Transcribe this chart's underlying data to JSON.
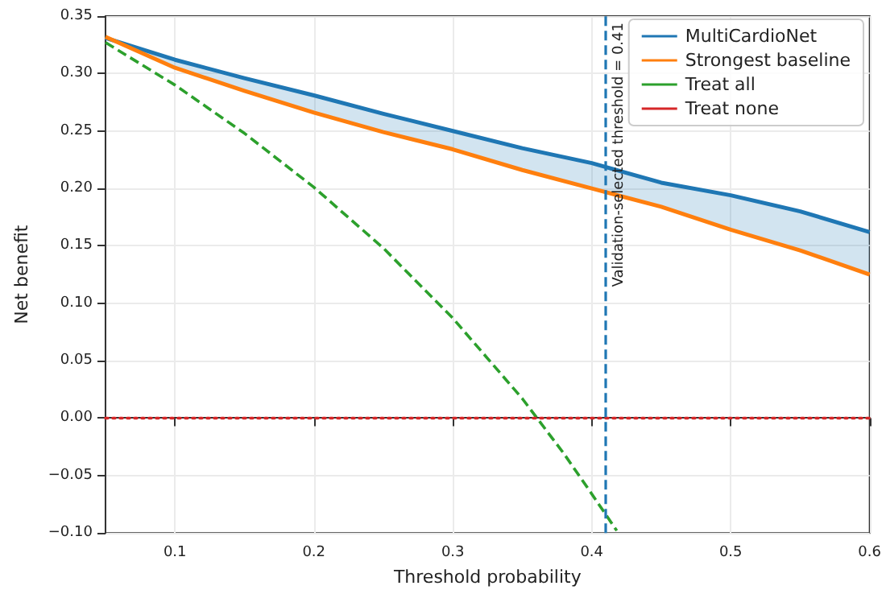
{
  "chart_data": {
    "type": "line",
    "xlabel": "Threshold probability",
    "ylabel": "Net benefit",
    "xlim": [
      0.05,
      0.6
    ],
    "xticks": [
      0.1,
      0.2,
      0.3,
      0.4,
      0.5,
      0.6
    ],
    "ylim": [
      -0.1,
      0.35
    ],
    "yticks": [
      {
        "value": -0.1,
        "label": "−0.10"
      },
      {
        "value": -0.05,
        "label": "−0.05"
      },
      {
        "value": 0,
        "label": "0.00"
      },
      {
        "value": 0.05,
        "label": "0.05"
      },
      {
        "value": 0.1,
        "label": "0.10"
      },
      {
        "value": 0.15,
        "label": "0.15"
      },
      {
        "value": 0.2,
        "label": "0.20"
      },
      {
        "value": 0.25,
        "label": "0.25"
      },
      {
        "value": 0.3,
        "label": "0.30"
      },
      {
        "value": 0.35,
        "label": "0.35"
      }
    ],
    "grid": true,
    "legend": "top right",
    "marker": "none",
    "series": [
      {
        "name": "MultiCardioNet",
        "color": "#1f77b4",
        "line_style": "solid",
        "x": [
          0.05,
          0.1,
          0.15,
          0.2,
          0.25,
          0.3,
          0.35,
          0.4,
          0.45,
          0.5,
          0.55,
          0.6
        ],
        "values": [
          0.331,
          0.312,
          0.296,
          0.281,
          0.265,
          0.25,
          0.235,
          0.222,
          0.205,
          0.194,
          0.18,
          0.162
        ],
        "lower": [
          0.332,
          0.305,
          0.285,
          0.266,
          0.249,
          0.234,
          0.216,
          0.2,
          0.184,
          0.164,
          0.146,
          0.125
        ],
        "upper": [
          0.331,
          0.312,
          0.296,
          0.281,
          0.265,
          0.25,
          0.235,
          0.222,
          0.205,
          0.194,
          0.18,
          0.162
        ]
      },
      {
        "name": "Strongest baseline",
        "color": "#ff7f0e",
        "line_style": "solid",
        "x": [
          0.05,
          0.1,
          0.15,
          0.2,
          0.25,
          0.3,
          0.35,
          0.4,
          0.45,
          0.5,
          0.55,
          0.6
        ],
        "values": [
          0.332,
          0.305,
          0.285,
          0.266,
          0.249,
          0.234,
          0.216,
          0.2,
          0.184,
          0.164,
          0.146,
          0.125
        ]
      },
      {
        "name": "Treat all",
        "color": "#2ca02c",
        "line_style": "dashed",
        "x": [
          0.05,
          0.1,
          0.15,
          0.2,
          0.25,
          0.3,
          0.35,
          0.38,
          0.4,
          0.418
        ],
        "values": [
          0.327,
          0.29,
          0.248,
          0.201,
          0.148,
          0.087,
          0.017,
          -0.031,
          -0.066,
          -0.098
        ]
      },
      {
        "name": "Treat none",
        "color": "#d62728",
        "line_style": "dotted",
        "x": [
          0.05,
          0.6
        ],
        "values": [
          0,
          0
        ]
      }
    ],
    "ref_lines": [
      {
        "axis": "x",
        "value": 0.41,
        "label": "Validation-selected threshold = 0.41",
        "color": "#1f77b4",
        "line_style": "dashed"
      }
    ]
  }
}
